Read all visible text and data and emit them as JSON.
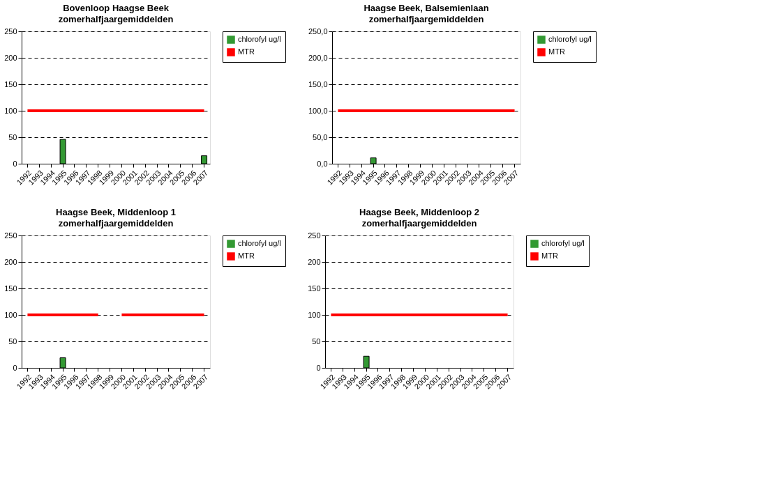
{
  "chart_data": [
    {
      "type": "bar",
      "title": "Bovenloop Haagse Beek",
      "subtitle": "zomerhalfjaargemiddelden",
      "categories": [
        "1992",
        "1993",
        "1994",
        "1995",
        "1996",
        "1997",
        "1998",
        "1999",
        "2000",
        "2001",
        "2002",
        "2003",
        "2004",
        "2005",
        "2006",
        "2007"
      ],
      "series": [
        {
          "name": "chlorofyl ug/l",
          "color": "#339933",
          "values": [
            null,
            null,
            null,
            46,
            null,
            null,
            null,
            null,
            null,
            null,
            null,
            null,
            null,
            null,
            null,
            15
          ]
        },
        {
          "name": "MTR",
          "type": "line",
          "color": "#ff0000",
          "values": [
            100,
            100,
            100,
            100,
            100,
            100,
            100,
            100,
            100,
            100,
            100,
            100,
            100,
            100,
            100,
            100
          ]
        }
      ],
      "ylim": [
        0,
        250
      ],
      "yticks": [
        0,
        50,
        100,
        150,
        200,
        250
      ],
      "grid": "y",
      "legend": "right",
      "marker": "none",
      "line_style": "solid"
    },
    {
      "type": "bar",
      "title": "Haagse Beek, Balsemienlaan",
      "subtitle": "zomerhalfjaargemiddelden",
      "categories": [
        "1992",
        "1993",
        "1994",
        "1995",
        "1996",
        "1997",
        "1998",
        "1999",
        "2000",
        "2001",
        "2002",
        "2003",
        "2004",
        "2005",
        "2006",
        "2007"
      ],
      "series": [
        {
          "name": "chlorofyl ug/l",
          "color": "#339933",
          "values": [
            null,
            null,
            null,
            11,
            null,
            null,
            null,
            null,
            null,
            null,
            null,
            null,
            null,
            null,
            null,
            null
          ]
        },
        {
          "name": "MTR",
          "type": "line",
          "color": "#ff0000",
          "values": [
            100,
            100,
            100,
            100,
            100,
            100,
            100,
            100,
            100,
            100,
            100,
            100,
            100,
            100,
            100,
            100
          ]
        }
      ],
      "ylim": [
        0,
        250
      ],
      "yticks": [
        {
          "value": 0,
          "label": "0,0"
        },
        {
          "value": 50,
          "label": "50,0"
        },
        {
          "value": 100,
          "label": "100,0"
        },
        {
          "value": 150,
          "label": "150,0"
        },
        {
          "value": 200,
          "label": "200,0"
        },
        {
          "value": 250,
          "label": "250,0"
        }
      ],
      "grid": "y",
      "legend": "right",
      "marker": "none",
      "line_style": "solid"
    },
    {
      "type": "bar",
      "title": "Haagse Beek, Middenloop 1",
      "subtitle": "zomerhalfjaargemiddelden",
      "categories": [
        "1992",
        "1993",
        "1994",
        "1995",
        "1996",
        "1997",
        "1998",
        "1999",
        "2000",
        "2001",
        "2002",
        "2003",
        "2004",
        "2005",
        "2006",
        "2007"
      ],
      "series": [
        {
          "name": "chlorofyl ug/l",
          "color": "#339933",
          "values": [
            null,
            null,
            null,
            19,
            null,
            null,
            null,
            null,
            null,
            null,
            null,
            null,
            null,
            null,
            null,
            null
          ]
        },
        {
          "name": "MTR",
          "type": "line",
          "color": "#ff0000",
          "values": [
            100,
            100,
            100,
            100,
            100,
            100,
            100,
            null,
            100,
            100,
            100,
            100,
            100,
            100,
            100,
            100
          ]
        }
      ],
      "ylim": [
        0,
        250
      ],
      "yticks": [
        0,
        50,
        100,
        150,
        200,
        250
      ],
      "grid": "y",
      "legend": "right",
      "marker": "none",
      "line_style": "solid"
    },
    {
      "type": "bar",
      "title": "Haagse Beek, Middenloop 2",
      "subtitle": "zomerhalfjaargemiddelden",
      "categories": [
        "1992",
        "1993",
        "1994",
        "1995",
        "1996",
        "1997",
        "1998",
        "1999",
        "2000",
        "2001",
        "2002",
        "2003",
        "2004",
        "2005",
        "2006",
        "2007"
      ],
      "series": [
        {
          "name": "chlorofyl ug/l",
          "color": "#339933",
          "values": [
            null,
            null,
            null,
            22,
            null,
            null,
            null,
            null,
            null,
            null,
            null,
            null,
            null,
            null,
            null,
            null
          ]
        },
        {
          "name": "MTR",
          "type": "line",
          "color": "#ff0000",
          "values": [
            100,
            100,
            100,
            100,
            100,
            100,
            100,
            100,
            100,
            100,
            100,
            100,
            100,
            100,
            100,
            100
          ]
        }
      ],
      "ylim": [
        0,
        250
      ],
      "yticks": [
        0,
        50,
        100,
        150,
        200,
        250
      ],
      "grid": "y",
      "legend": "right",
      "marker": "none",
      "line_style": "solid"
    }
  ]
}
